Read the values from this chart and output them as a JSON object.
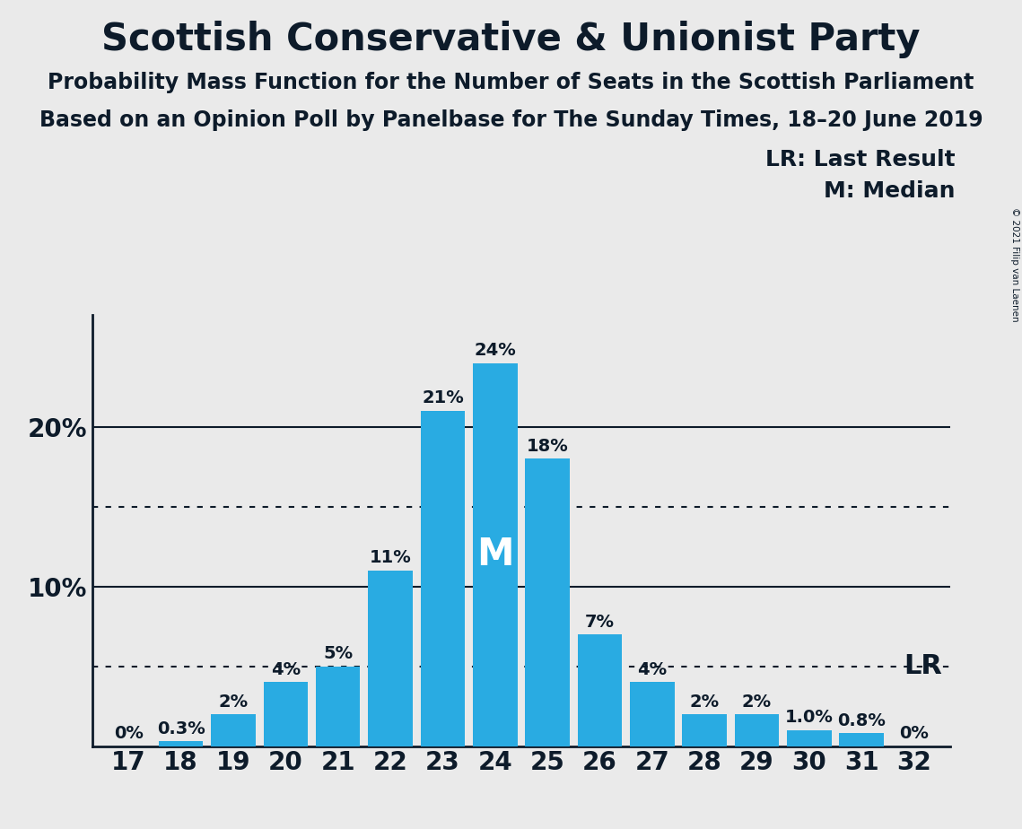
{
  "title": "Scottish Conservative & Unionist Party",
  "subtitle1": "Probability Mass Function for the Number of Seats in the Scottish Parliament",
  "subtitle2": "Based on an Opinion Poll by Panelbase for The Sunday Times, 18–20 June 2019",
  "copyright": "© 2021 Filip van Laenen",
  "seats": [
    17,
    18,
    19,
    20,
    21,
    22,
    23,
    24,
    25,
    26,
    27,
    28,
    29,
    30,
    31,
    32
  ],
  "probabilities": [
    0.0,
    0.3,
    2.0,
    4.0,
    5.0,
    11.0,
    21.0,
    24.0,
    18.0,
    7.0,
    4.0,
    2.0,
    2.0,
    1.0,
    0.8,
    0.0
  ],
  "labels": [
    "0%",
    "0.3%",
    "2%",
    "4%",
    "5%",
    "11%",
    "21%",
    "24%",
    "18%",
    "7%",
    "4%",
    "2%",
    "2%",
    "1.0%",
    "0.8%",
    "0%"
  ],
  "bar_color": "#29ABE2",
  "background_color": "#EAEAEA",
  "text_color": "#0D1B2A",
  "median_seat": 24,
  "lr_seat": 31,
  "dotted_lines": [
    5.0,
    15.0
  ],
  "solid_lines": [
    10.0,
    20.0
  ],
  "yticks": [
    10,
    20
  ],
  "ylim": [
    0,
    27
  ],
  "title_fontsize": 30,
  "subtitle_fontsize": 17,
  "label_fontsize": 14,
  "tick_fontsize": 20,
  "legend_fontsize": 18
}
